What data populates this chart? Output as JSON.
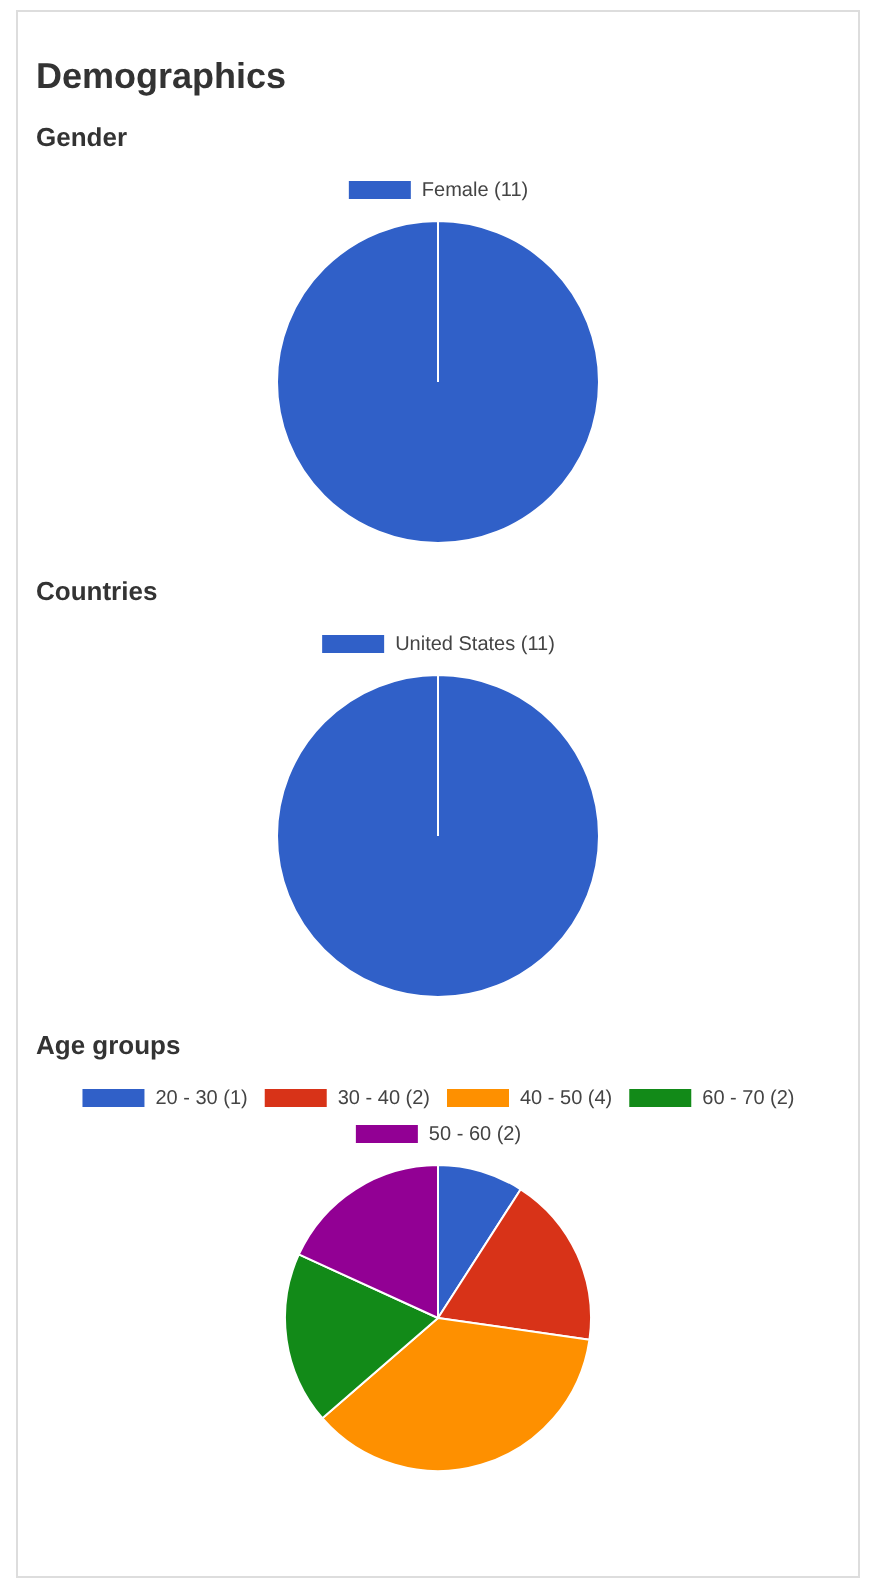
{
  "chart_data": [
    {
      "type": "pie",
      "title": "Demographics",
      "subtitle": "Gender",
      "categories": [
        "Female (11)"
      ],
      "values": [
        11
      ],
      "colors": [
        "#3060c8"
      ],
      "legend": "top"
    },
    {
      "type": "pie",
      "title": "Countries",
      "categories": [
        "United States (11)"
      ],
      "values": [
        11
      ],
      "colors": [
        "#3060c8"
      ],
      "legend": "top"
    },
    {
      "type": "pie",
      "title": "Age groups",
      "categories": [
        "20 - 30 (1)",
        "30 - 40 (2)",
        "40 - 50 (4)",
        "60 - 70 (2)",
        "50 - 60 (2)"
      ],
      "values": [
        1,
        2,
        4,
        2,
        2
      ],
      "colors": [
        "#3060c8",
        "#d83318",
        "#fe9000",
        "#128a18",
        "#920094"
      ],
      "legend": "top"
    }
  ]
}
